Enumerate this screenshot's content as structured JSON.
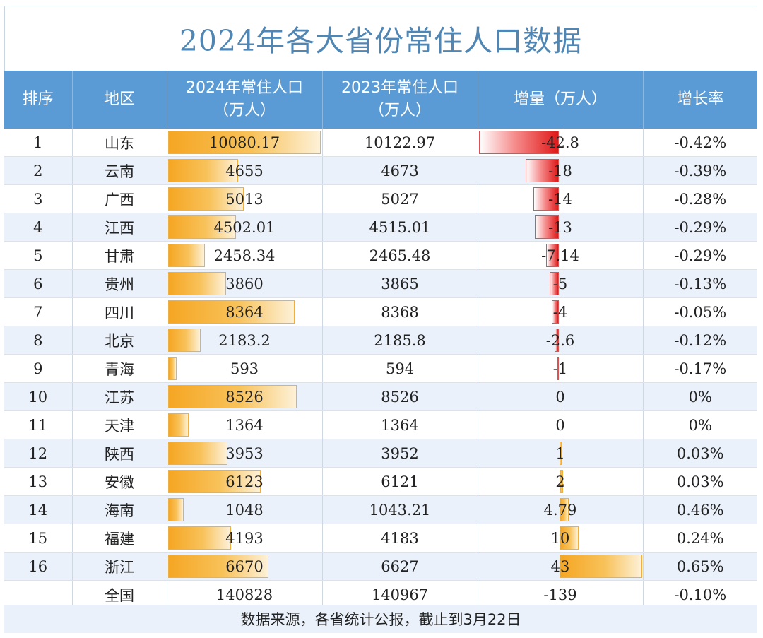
{
  "title": "2024年各大省份常住人口数据",
  "headers": {
    "rank": "排序",
    "region": "地区",
    "pop2024_line1": "2024年常住人口",
    "pop2024_line2": "（万人）",
    "pop2023_line1": "2023年常住人口",
    "pop2023_line2": "（万人）",
    "delta": "增量（万人）",
    "rate": "增长率"
  },
  "footer": "数据来源，各省统计公报，截止到3月22日",
  "colors": {
    "header_bg": "#5b9bd5",
    "title": "#4f86b4",
    "bar_orange": "#f5a623",
    "bar_red": "#e01818",
    "row_alt": "#eaf1fa"
  },
  "chart_data": {
    "type": "table",
    "title": "2024年各大省份常住人口数据",
    "columns": [
      "排序",
      "地区",
      "2024年常住人口（万人）",
      "2023年常住人口（万人）",
      "增量（万人）",
      "增长率"
    ],
    "rows": [
      {
        "rank": "1",
        "region": "山东",
        "pop2024": "10080.17",
        "pop2023": "10122.97",
        "delta": "-42.8",
        "rate": "-0.42%"
      },
      {
        "rank": "2",
        "region": "云南",
        "pop2024": "4655",
        "pop2023": "4673",
        "delta": "-18",
        "rate": "-0.39%"
      },
      {
        "rank": "3",
        "region": "广西",
        "pop2024": "5013",
        "pop2023": "5027",
        "delta": "-14",
        "rate": "-0.28%"
      },
      {
        "rank": "4",
        "region": "江西",
        "pop2024": "4502.01",
        "pop2023": "4515.01",
        "delta": "-13",
        "rate": "-0.29%"
      },
      {
        "rank": "5",
        "region": "甘肃",
        "pop2024": "2458.34",
        "pop2023": "2465.48",
        "delta": "-7.14",
        "rate": "-0.29%"
      },
      {
        "rank": "6",
        "region": "贵州",
        "pop2024": "3860",
        "pop2023": "3865",
        "delta": "-5",
        "rate": "-0.13%"
      },
      {
        "rank": "7",
        "region": "四川",
        "pop2024": "8364",
        "pop2023": "8368",
        "delta": "-4",
        "rate": "-0.05%"
      },
      {
        "rank": "8",
        "region": "北京",
        "pop2024": "2183.2",
        "pop2023": "2185.8",
        "delta": "-2.6",
        "rate": "-0.12%"
      },
      {
        "rank": "9",
        "region": "青海",
        "pop2024": "593",
        "pop2023": "594",
        "delta": "-1",
        "rate": "-0.17%"
      },
      {
        "rank": "10",
        "region": "江苏",
        "pop2024": "8526",
        "pop2023": "8526",
        "delta": "0",
        "rate": "0%"
      },
      {
        "rank": "11",
        "region": "天津",
        "pop2024": "1364",
        "pop2023": "1364",
        "delta": "0",
        "rate": "0%"
      },
      {
        "rank": "12",
        "region": "陕西",
        "pop2024": "3953",
        "pop2023": "3952",
        "delta": "1",
        "rate": "0.03%"
      },
      {
        "rank": "13",
        "region": "安徽",
        "pop2024": "6123",
        "pop2023": "6121",
        "delta": "2",
        "rate": "0.03%"
      },
      {
        "rank": "14",
        "region": "海南",
        "pop2024": "1048",
        "pop2023": "1043.21",
        "delta": "4.79",
        "rate": "0.46%"
      },
      {
        "rank": "15",
        "region": "福建",
        "pop2024": "4193",
        "pop2023": "4183",
        "delta": "10",
        "rate": "0.24%"
      },
      {
        "rank": "16",
        "region": "浙江",
        "pop2024": "6670",
        "pop2023": "6627",
        "delta": "43",
        "rate": "0.65%"
      },
      {
        "rank": "",
        "region": "全国",
        "pop2024": "140828",
        "pop2023": "140967",
        "delta": "-139",
        "rate": "-0.10%"
      }
    ],
    "pop_bar_max": 10080.17,
    "delta_bar_min": -42.8,
    "delta_bar_max": 43
  }
}
